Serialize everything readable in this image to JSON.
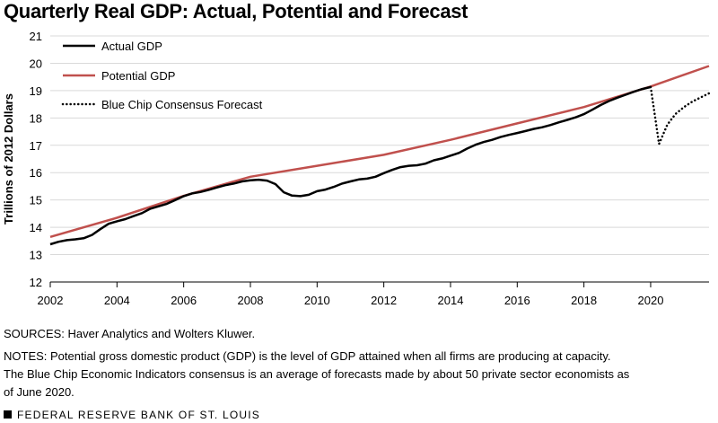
{
  "title": "Quarterly Real GDP: Actual, Potential and Forecast",
  "sources": "SOURCES: Haver Analytics and Wolters Kluwer.",
  "notes": [
    "NOTES: Potential gross domestic product (GDP) is the level of GDP attained when all firms are producing at capacity.",
    "The Blue Chip Economic Indicators consensus is an average of forecasts made by about 50 private sector economists as",
    "of June 2020."
  ],
  "footer": "FEDERAL RESERVE BANK OF ST. LOUIS",
  "colors": {
    "actual": "#000000",
    "potential": "#c0504d",
    "forecast": "#000000",
    "grid": "#d9d9d9"
  },
  "chart_data": {
    "type": "line",
    "title": "Quarterly Real GDP: Actual, Potential and Forecast",
    "xlabel": "",
    "ylabel": "Trillions of 2012 Dollars",
    "xlim": [
      2002,
      2021.75
    ],
    "ylim": [
      12,
      21
    ],
    "x_ticks": [
      2002,
      2004,
      2006,
      2008,
      2010,
      2012,
      2014,
      2016,
      2018,
      2020
    ],
    "y_ticks": [
      12,
      13,
      14,
      15,
      16,
      17,
      18,
      19,
      20,
      21
    ],
    "legend_position": "top-left",
    "series": [
      {
        "name": "Actual GDP",
        "style": "solid",
        "x": [
          2002.0,
          2002.25,
          2002.5,
          2002.75,
          2003.0,
          2003.25,
          2003.5,
          2003.75,
          2004.0,
          2004.25,
          2004.5,
          2004.75,
          2005.0,
          2005.25,
          2005.5,
          2005.75,
          2006.0,
          2006.25,
          2006.5,
          2006.75,
          2007.0,
          2007.25,
          2007.5,
          2007.75,
          2008.0,
          2008.25,
          2008.5,
          2008.75,
          2009.0,
          2009.25,
          2009.5,
          2009.75,
          2010.0,
          2010.25,
          2010.5,
          2010.75,
          2011.0,
          2011.25,
          2011.5,
          2011.75,
          2012.0,
          2012.25,
          2012.5,
          2012.75,
          2013.0,
          2013.25,
          2013.5,
          2013.75,
          2014.0,
          2014.25,
          2014.5,
          2014.75,
          2015.0,
          2015.25,
          2015.5,
          2015.75,
          2016.0,
          2016.25,
          2016.5,
          2016.75,
          2017.0,
          2017.25,
          2017.5,
          2017.75,
          2018.0,
          2018.25,
          2018.5,
          2018.75,
          2019.0,
          2019.25,
          2019.5,
          2019.75,
          2020.0
        ],
        "values": [
          13.38,
          13.47,
          13.53,
          13.56,
          13.6,
          13.72,
          13.93,
          14.13,
          14.22,
          14.3,
          14.41,
          14.52,
          14.68,
          14.77,
          14.86,
          15.0,
          15.14,
          15.24,
          15.29,
          15.37,
          15.46,
          15.54,
          15.6,
          15.68,
          15.72,
          15.74,
          15.71,
          15.58,
          15.28,
          15.16,
          15.14,
          15.19,
          15.32,
          15.38,
          15.48,
          15.6,
          15.68,
          15.75,
          15.78,
          15.85,
          15.98,
          16.1,
          16.2,
          16.25,
          16.27,
          16.33,
          16.45,
          16.52,
          16.62,
          16.72,
          16.88,
          17.02,
          17.12,
          17.2,
          17.3,
          17.38,
          17.45,
          17.52,
          17.6,
          17.66,
          17.74,
          17.84,
          17.93,
          18.02,
          18.14,
          18.3,
          18.47,
          18.62,
          18.74,
          18.85,
          18.96,
          19.06,
          19.13
        ]
      },
      {
        "name": "Potential GDP",
        "style": "solid",
        "x": [
          2002.0,
          2004.0,
          2006.0,
          2008.0,
          2010.0,
          2012.0,
          2014.0,
          2016.0,
          2018.0,
          2020.0,
          2021.75
        ],
        "values": [
          13.65,
          14.35,
          15.15,
          15.85,
          16.25,
          16.65,
          17.2,
          17.8,
          18.4,
          19.15,
          19.9
        ]
      },
      {
        "name": "Blue Chip Consensus Forecast",
        "style": "dotted",
        "x": [
          2020.0,
          2020.25,
          2020.5,
          2020.75,
          2021.0,
          2021.25,
          2021.5,
          2021.75
        ],
        "values": [
          19.13,
          17.05,
          17.75,
          18.15,
          18.4,
          18.6,
          18.75,
          18.9
        ]
      }
    ]
  }
}
